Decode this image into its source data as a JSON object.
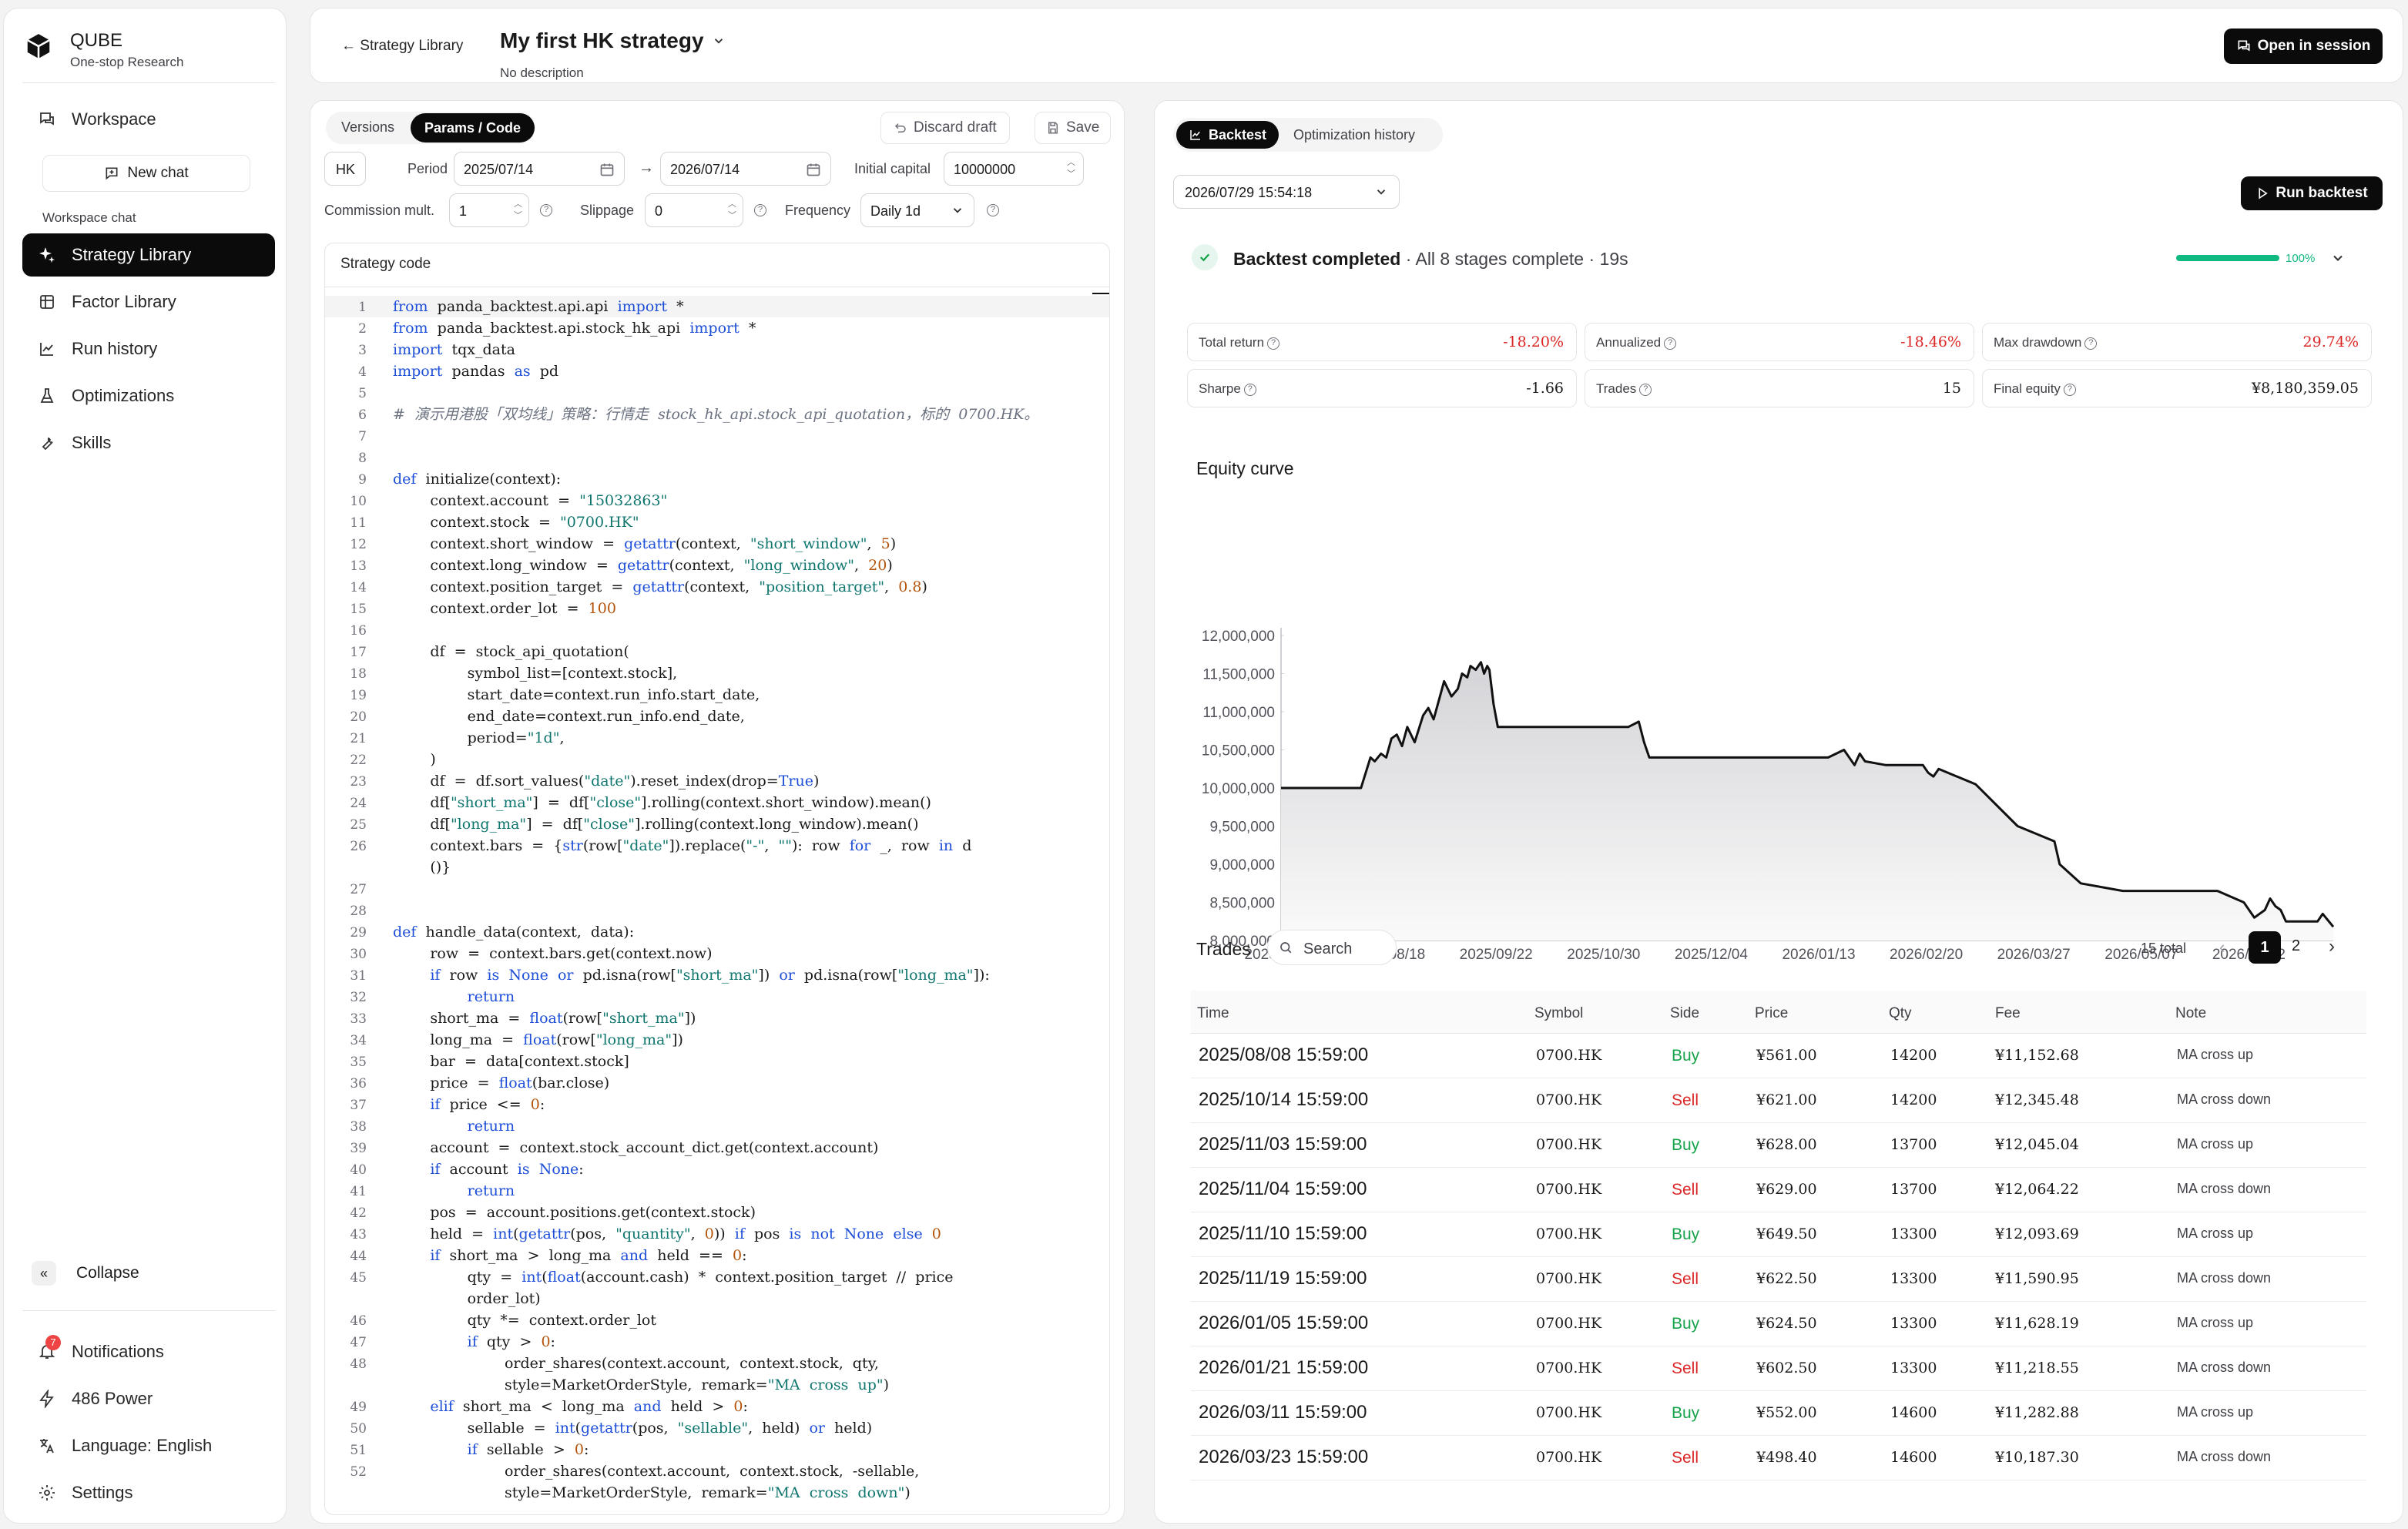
{
  "sidebar": {
    "brand": "QUBE",
    "tagline": "One-stop Research",
    "workspace": "Workspace",
    "new_chat": "New chat",
    "workspace_chat": "Workspace chat",
    "items": [
      {
        "label": "Strategy Library",
        "icon": "sparkle-icon"
      },
      {
        "label": "Factor Library",
        "icon": "factor-icon"
      },
      {
        "label": "Run history",
        "icon": "chart-line-icon"
      },
      {
        "label": "Optimizations",
        "icon": "flask-icon"
      },
      {
        "label": "Skills",
        "icon": "wrench-icon"
      }
    ],
    "collapse": "Collapse",
    "notifications": "Notifications",
    "notifications_badge": "7",
    "power": "486 Power",
    "language": "Language: English",
    "settings": "Settings"
  },
  "header": {
    "back": "← Strategy Library",
    "title": "My first HK strategy",
    "description": "No description",
    "open_session": "Open in session"
  },
  "editor": {
    "tabs": [
      "Versions",
      "Params / Code"
    ],
    "discard": "Discard draft",
    "save": "Save",
    "market": "HK",
    "period_label": "Period",
    "start": "2025/07/14",
    "arrow": "→",
    "end": "2026/07/14",
    "capital_label": "Initial capital",
    "capital": "10000000",
    "commission_label": "Commission mult.",
    "commission": "1",
    "slippage_label": "Slippage",
    "slippage": "0",
    "frequency_label": "Frequency",
    "frequency": "Daily 1d",
    "code_title": "Strategy code"
  },
  "code_lines": [
    [
      "1",
      "<span class='kw'>from</span>  panda_backtest.api.api  <span class='kw'>import</span>  *"
    ],
    [
      "2",
      "<span class='kw'>from</span>  panda_backtest.api.stock_hk_api  <span class='kw'>import</span>  *"
    ],
    [
      "3",
      "<span class='kw'>import</span>  tqx_data"
    ],
    [
      "4",
      "<span class='kw'>import</span>  pandas  <span class='kw'>as</span>  pd"
    ],
    [
      "5",
      ""
    ],
    [
      "6",
      "<span class='cm'>#  演示用港股「双均线」策略：行情走  stock_hk_api.stock_api_quotation，标的  0700.HK。</span>"
    ],
    [
      "7",
      ""
    ],
    [
      "8",
      ""
    ],
    [
      "9",
      "<span class='kw'>def</span>  initialize(context):"
    ],
    [
      "10",
      "        context.account  =  <span class='st'>\"15032863\"</span>"
    ],
    [
      "11",
      "        context.stock  =  <span class='st'>\"0700.HK\"</span>"
    ],
    [
      "12",
      "        context.short_window  =  <span class='kw'>getattr</span>(context,  <span class='st'>\"short_window\"</span>,  <span class='nu'>5</span>)"
    ],
    [
      "13",
      "        context.long_window  =  <span class='kw'>getattr</span>(context,  <span class='st'>\"long_window\"</span>,  <span class='nu'>20</span>)"
    ],
    [
      "14",
      "        context.position_target  =  <span class='kw'>getattr</span>(context,  <span class='st'>\"position_target\"</span>,  <span class='nu'>0.8</span>)"
    ],
    [
      "15",
      "        context.order_lot  =  <span class='nu'>100</span>"
    ],
    [
      "16",
      ""
    ],
    [
      "17",
      "        df  =  stock_api_quotation("
    ],
    [
      "18",
      "                symbol_list=[context.stock],"
    ],
    [
      "19",
      "                start_date=context.run_info.start_date,"
    ],
    [
      "20",
      "                end_date=context.run_info.end_date,"
    ],
    [
      "21",
      "                period=<span class='st'>\"1d\"</span>,"
    ],
    [
      "22",
      "        )"
    ],
    [
      "23",
      "        df  =  df.sort_values(<span class='st'>\"date\"</span>).reset_index(drop=<span class='kw'>True</span>)"
    ],
    [
      "24",
      "        df[<span class='st'>\"short_ma\"</span>]  =  df[<span class='st'>\"close\"</span>].rolling(context.short_window).mean()"
    ],
    [
      "25",
      "        df[<span class='st'>\"long_ma\"</span>]  =  df[<span class='st'>\"close\"</span>].rolling(context.long_window).mean()"
    ],
    [
      "26",
      "        context.bars  =  {<span class='kw'>str</span>(row[<span class='st'>\"date\"</span>]).replace(<span class='st'>\"-\"</span>,  <span class='st'>\"\"</span>):  row  <span class='kw'>for</span>  _,  row  <span class='kw'>in</span>  d"
    ],
    [
      "",
      "        ()}"
    ],
    [
      "27",
      ""
    ],
    [
      "28",
      ""
    ],
    [
      "29",
      "<span class='kw'>def</span>  handle_data(context,  data):"
    ],
    [
      "30",
      "        row  =  context.bars.get(context.now)"
    ],
    [
      "31",
      "        <span class='kw'>if</span>  row  <span class='kw'>is</span>  <span class='kw'>None</span>  <span class='kw'>or</span>  pd.isna(row[<span class='st'>\"short_ma\"</span>])  <span class='kw'>or</span>  pd.isna(row[<span class='st'>\"long_ma\"</span>]):"
    ],
    [
      "32",
      "                <span class='kw'>return</span>"
    ],
    [
      "33",
      "        short_ma  =  <span class='kw'>float</span>(row[<span class='st'>\"short_ma\"</span>])"
    ],
    [
      "34",
      "        long_ma  =  <span class='kw'>float</span>(row[<span class='st'>\"long_ma\"</span>])"
    ],
    [
      "35",
      "        bar  =  data[context.stock]"
    ],
    [
      "36",
      "        price  =  <span class='kw'>float</span>(bar.close)"
    ],
    [
      "37",
      "        <span class='kw'>if</span>  price  <=  <span class='nu'>0</span>:"
    ],
    [
      "38",
      "                <span class='kw'>return</span>"
    ],
    [
      "39",
      "        account  =  context.stock_account_dict.get(context.account)"
    ],
    [
      "40",
      "        <span class='kw'>if</span>  account  <span class='kw'>is</span>  <span class='kw'>None</span>:"
    ],
    [
      "41",
      "                <span class='kw'>return</span>"
    ],
    [
      "42",
      "        pos  =  account.positions.get(context.stock)"
    ],
    [
      "43",
      "        held  =  <span class='kw'>int</span>(<span class='kw'>getattr</span>(pos,  <span class='st'>\"quantity\"</span>,  <span class='nu'>0</span>))  <span class='kw'>if</span>  pos  <span class='kw'>is</span>  <span class='kw'>not</span>  <span class='kw'>None</span>  <span class='kw'>else</span>  <span class='nu'>0</span>"
    ],
    [
      "44",
      "        <span class='kw'>if</span>  short_ma  >  long_ma  <span class='kw'>and</span>  held  ==  <span class='nu'>0</span>:"
    ],
    [
      "45",
      "                qty  =  <span class='kw'>int</span>(<span class='kw'>float</span>(account.cash)  *  context.position_target  //  price"
    ],
    [
      "",
      "                order_lot)"
    ],
    [
      "46",
      "                qty  *=  context.order_lot"
    ],
    [
      "47",
      "                <span class='kw'>if</span>  qty  >  <span class='nu'>0</span>:"
    ],
    [
      "48",
      "                        order_shares(context.account,  context.stock,  qty,"
    ],
    [
      "",
      "                        style=MarketOrderStyle,  remark=<span class='st'>\"MA  cross  up\"</span>)"
    ],
    [
      "49",
      "        <span class='kw'>elif</span>  short_ma  <  long_ma  <span class='kw'>and</span>  held  >  <span class='nu'>0</span>:"
    ],
    [
      "50",
      "                sellable  =  <span class='kw'>int</span>(<span class='kw'>getattr</span>(pos,  <span class='st'>\"sellable\"</span>,  held)  <span class='kw'>or</span>  held)"
    ],
    [
      "51",
      "                <span class='kw'>if</span>  sellable  >  <span class='nu'>0</span>:"
    ],
    [
      "52",
      "                        order_shares(context.account,  context.stock,  -sellable,"
    ],
    [
      "",
      "                        style=MarketOrderStyle,  remark=<span class='st'>\"MA  cross  down\"</span>)"
    ]
  ],
  "backtest": {
    "tabs": [
      "Backtest",
      "Optimization history"
    ],
    "run_select": "2026/07/29 15:54:18",
    "run_button": "Run backtest",
    "status_title": "Backtest completed",
    "status_detail": "· All 8 stages complete · 19s",
    "progress_label": "100%",
    "progress": 1.0,
    "metrics": [
      {
        "label": "Total return",
        "value": "-18.20%",
        "color": "#dc2626"
      },
      {
        "label": "Annualized",
        "value": "-18.46%",
        "color": "#dc2626"
      },
      {
        "label": "Max drawdown",
        "value": "29.74%",
        "color": "#dc2626"
      },
      {
        "label": "Sharpe",
        "value": "-1.66",
        "color": "#1a1a1a"
      },
      {
        "label": "Trades",
        "value": "15",
        "color": "#1a1a1a"
      },
      {
        "label": "Final equity",
        "value": "¥8,180,359.05",
        "color": "#1a1a1a"
      }
    ],
    "equity_title": "Equity curve"
  },
  "chart_data": {
    "type": "area",
    "title": "Equity curve",
    "x_ticks": [
      "2025/07/14",
      "2025/08/18",
      "2025/09/22",
      "2025/10/30",
      "2025/12/04",
      "2026/01/13",
      "2026/02/20",
      "2026/03/27",
      "2026/05/07",
      "2026/06/12"
    ],
    "y_ticks": [
      "12,000,000",
      "11,500,000",
      "11,000,000",
      "10,500,000",
      "10,000,000",
      "9,500,000",
      "9,000,000",
      "8,500,000",
      "8,000,000"
    ],
    "ylim": [
      8000000,
      12000000
    ],
    "x": [
      0,
      0.076,
      0.085,
      0.089,
      0.095,
      0.1,
      0.105,
      0.11,
      0.115,
      0.12,
      0.127,
      0.135,
      0.14,
      0.145,
      0.15,
      0.155,
      0.162,
      0.168,
      0.172,
      0.177,
      0.18,
      0.185,
      0.19,
      0.193,
      0.196,
      0.198,
      0.202,
      0.206,
      0.245,
      0.33,
      0.34,
      0.345,
      0.35,
      0.52,
      0.535,
      0.545,
      0.55,
      0.555,
      0.575,
      0.6,
      0.61,
      0.615,
      0.62,
      0.625,
      0.66,
      0.7,
      0.735,
      0.74,
      0.76,
      0.8,
      0.82,
      0.825,
      0.89,
      0.915,
      0.925,
      0.935,
      0.94,
      0.945,
      0.95,
      0.955,
      0.97,
      0.985,
      0.99,
      1.0
    ],
    "y": [
      10000000,
      10000000,
      10400000,
      10350000,
      10450000,
      10400000,
      10650000,
      10700000,
      10550000,
      10800000,
      10600000,
      10950000,
      11050000,
      10900000,
      11150000,
      11400000,
      11200000,
      11300000,
      11500000,
      11450000,
      11600000,
      11550000,
      11650000,
      11500000,
      11600000,
      11550000,
      11100000,
      10800000,
      10800000,
      10800000,
      10870000,
      10600000,
      10400000,
      10400000,
      10500000,
      10300000,
      10450000,
      10350000,
      10300000,
      10300000,
      10300000,
      10200000,
      10150000,
      10250000,
      10050000,
      9500000,
      9300000,
      9000000,
      8750000,
      8650000,
      8650000,
      8650000,
      8650000,
      8500000,
      8300000,
      8400000,
      8550000,
      8450000,
      8400000,
      8250000,
      8250000,
      8250000,
      8350000,
      8180000
    ]
  },
  "trades": {
    "title": "Trades",
    "search_placeholder": "Search",
    "total": "15 total",
    "pages": [
      "1",
      "2"
    ],
    "headers": [
      "Time",
      "Symbol",
      "Side",
      "Price",
      "Qty",
      "Fee",
      "Note"
    ],
    "rows": [
      [
        "2025/08/08 15:59:00",
        "0700.HK",
        "Buy",
        "¥561.00",
        "14200",
        "¥11,152.68",
        "MA cross up"
      ],
      [
        "2025/10/14 15:59:00",
        "0700.HK",
        "Sell",
        "¥621.00",
        "14200",
        "¥12,345.48",
        "MA cross down"
      ],
      [
        "2025/11/03 15:59:00",
        "0700.HK",
        "Buy",
        "¥628.00",
        "13700",
        "¥12,045.04",
        "MA cross up"
      ],
      [
        "2025/11/04 15:59:00",
        "0700.HK",
        "Sell",
        "¥629.00",
        "13700",
        "¥12,064.22",
        "MA cross down"
      ],
      [
        "2025/11/10 15:59:00",
        "0700.HK",
        "Buy",
        "¥649.50",
        "13300",
        "¥12,093.69",
        "MA cross up"
      ],
      [
        "2025/11/19 15:59:00",
        "0700.HK",
        "Sell",
        "¥622.50",
        "13300",
        "¥11,590.95",
        "MA cross down"
      ],
      [
        "2026/01/05 15:59:00",
        "0700.HK",
        "Buy",
        "¥624.50",
        "13300",
        "¥11,628.19",
        "MA cross up"
      ],
      [
        "2026/01/21 15:59:00",
        "0700.HK",
        "Sell",
        "¥602.50",
        "13300",
        "¥11,218.55",
        "MA cross down"
      ],
      [
        "2026/03/11 15:59:00",
        "0700.HK",
        "Buy",
        "¥552.00",
        "14600",
        "¥11,282.88",
        "MA cross up"
      ],
      [
        "2026/03/23 15:59:00",
        "0700.HK",
        "Sell",
        "¥498.40",
        "14600",
        "¥10,187.30",
        "MA cross down"
      ]
    ]
  }
}
